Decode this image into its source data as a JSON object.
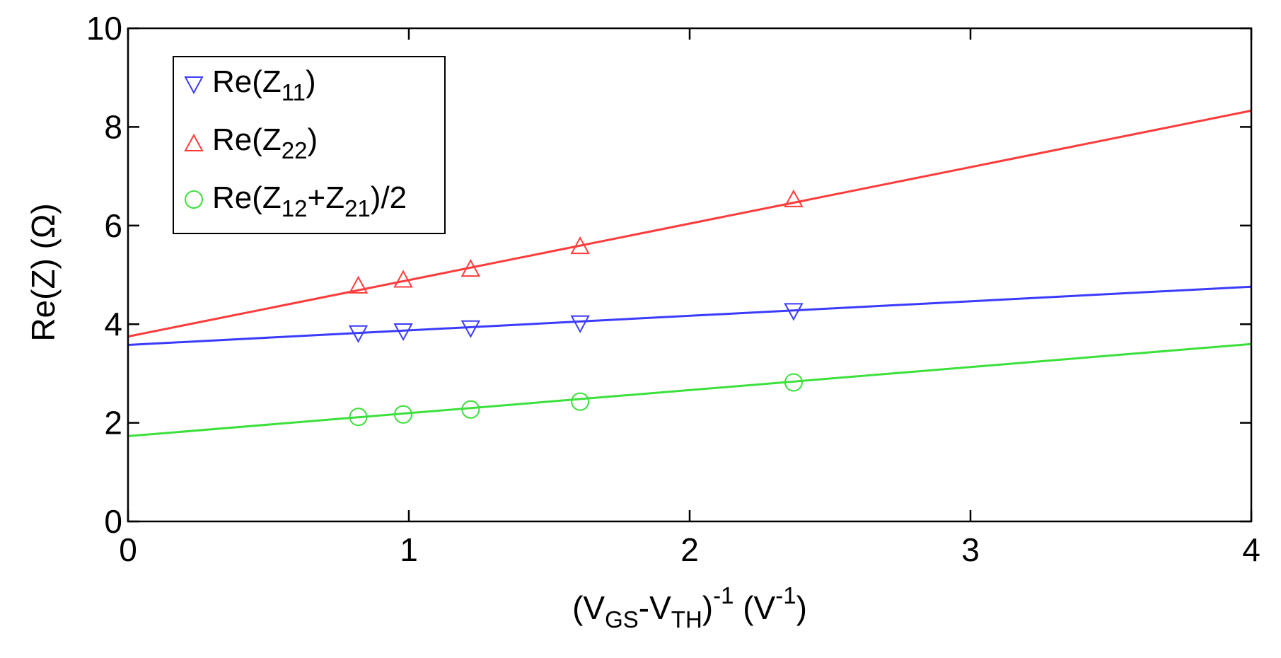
{
  "chart_data": {
    "type": "scatter",
    "xlim": [
      0,
      4
    ],
    "ylim": [
      0,
      10
    ],
    "xticks": [
      0,
      1,
      2,
      3,
      4
    ],
    "yticks": [
      0,
      2,
      4,
      6,
      8,
      10
    ],
    "x_tick_labels": [
      "0",
      "1",
      "2",
      "3",
      "4"
    ],
    "y_tick_labels": [
      "0",
      "2",
      "4",
      "6",
      "8",
      "10"
    ],
    "grid": false,
    "legend_position": "top-left",
    "xlabel": {
      "open": "(V",
      "sub1": "GS",
      "mid": "-V",
      "sub2": "TH",
      "close": ")",
      "sup": "-1",
      "unit_open": " (V",
      "unit_sup": "-1",
      "unit_close": ")"
    },
    "ylabel": "Re(Z) (Ω)",
    "series": [
      {
        "key": "z11",
        "legend": {
          "pre": "Re(Z",
          "sub1": "11",
          "post": ")"
        },
        "color": "#3b3bff",
        "marker": "triangle-down",
        "x": [
          0.82,
          0.98,
          1.22,
          1.61,
          2.37
        ],
        "y": [
          3.82,
          3.86,
          3.92,
          4.02,
          4.27
        ],
        "fit": {
          "intercept": 3.58,
          "slope": 0.295
        }
      },
      {
        "key": "z22",
        "legend": {
          "pre": "Re(Z",
          "sub1": "22",
          "post": ")"
        },
        "color": "#ff3b3b",
        "marker": "triangle-up",
        "x": [
          0.82,
          0.98,
          1.22,
          1.61,
          2.37
        ],
        "y": [
          4.78,
          4.9,
          5.12,
          5.58,
          6.53
        ],
        "fit": {
          "intercept": 3.75,
          "slope": 1.145
        }
      },
      {
        "key": "z12z21",
        "legend": {
          "pre": "Re(Z",
          "sub1": "12",
          "mid": "+Z",
          "sub2": "21",
          "post": ")/2"
        },
        "color": "#3be03b",
        "marker": "circle",
        "x": [
          0.82,
          0.98,
          1.22,
          1.61,
          2.37
        ],
        "y": [
          2.12,
          2.17,
          2.27,
          2.43,
          2.82
        ],
        "fit": {
          "intercept": 1.73,
          "slope": 0.467
        }
      }
    ]
  }
}
